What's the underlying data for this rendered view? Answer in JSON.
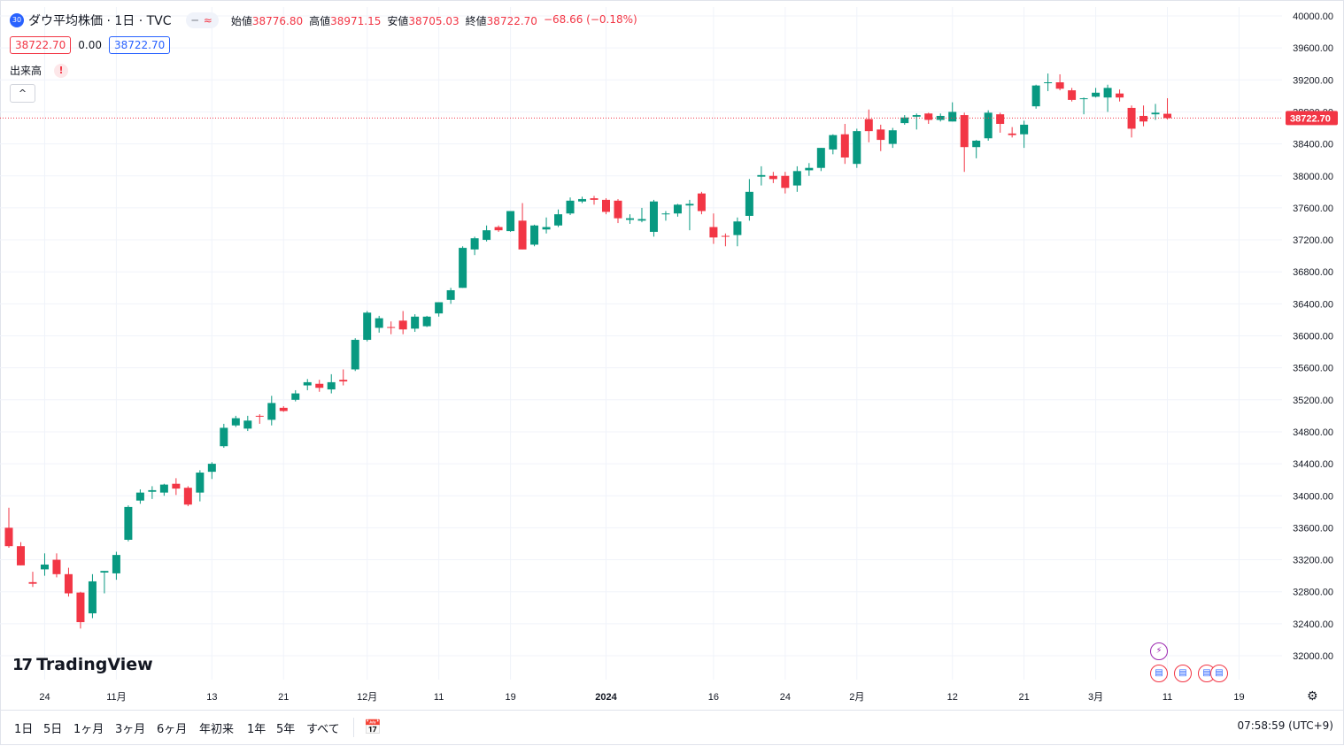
{
  "header": {
    "symbol_badge": "30",
    "title": "ダウ平均株価 · 1日 · TVC",
    "pill_left": "─",
    "pill_right": "≈",
    "ohlc": {
      "open_label": "始値",
      "open": "38776.80",
      "high_label": "高値",
      "high": "38971.15",
      "low_label": "安値",
      "low": "38705.03",
      "close_label": "終値",
      "close": "38722.70",
      "change": "−68.66 (−0.18%)"
    },
    "bid": "38722.70",
    "spread": "0.00",
    "ask": "38722.70",
    "volume_label": "出来高",
    "volume_warning": "!",
    "collapse_icon": "^"
  },
  "logo": {
    "mark": "17",
    "text": "TradingView"
  },
  "toolbar": {
    "ranges": [
      "1日",
      "5日",
      "1ヶ月",
      "3ヶ月",
      "6ヶ月",
      "年初来",
      "1年",
      "5年",
      "すべて"
    ],
    "calendar_icon": "calendar-goto-icon",
    "time": "07:58:59 (UTC+9)"
  },
  "colors": {
    "up": "#089981",
    "down": "#f23645",
    "grid": "#f0f3fa",
    "last_price": "#f23645"
  },
  "chart_data": {
    "type": "candlestick",
    "title": "ダウ平均株価 · 1日 · TVC",
    "xlabel": "",
    "ylabel": "",
    "ylim": [
      31700,
      40150
    ],
    "y_ticks": [
      32000,
      32400,
      32800,
      33200,
      33600,
      34000,
      34400,
      34800,
      35200,
      35600,
      36000,
      36400,
      36800,
      37200,
      37600,
      38000,
      38400,
      38800,
      39200,
      39600,
      40000
    ],
    "x_tick_labels": [
      "24",
      "11月",
      "13",
      "21",
      "12月",
      "11",
      "19",
      "2024",
      "16",
      "24",
      "2月",
      "12",
      "21",
      "3月",
      "11",
      "19"
    ],
    "x_tick_bar_index": [
      3,
      9,
      17,
      23,
      30,
      36,
      42,
      50,
      59,
      65,
      71,
      79,
      85,
      91,
      97,
      103
    ],
    "bold_tick": "2024",
    "last_price": 38722.7,
    "last_price_label": "38722.70",
    "candles": [
      [
        33600,
        33850,
        33350,
        33370
      ],
      [
        33370,
        33420,
        33130,
        33130
      ],
      [
        32920,
        33050,
        32860,
        32900
      ],
      [
        33080,
        33280,
        33000,
        33140
      ],
      [
        33200,
        33280,
        32980,
        33020
      ],
      [
        33020,
        33100,
        32740,
        32780
      ],
      [
        32790,
        32800,
        32340,
        32420
      ],
      [
        32530,
        33020,
        32470,
        32930
      ],
      [
        33040,
        33060,
        32780,
        33060
      ],
      [
        33030,
        33300,
        32950,
        33260
      ],
      [
        33450,
        33880,
        33430,
        33860
      ],
      [
        33940,
        34080,
        33900,
        34040
      ],
      [
        34050,
        34120,
        33960,
        34070
      ],
      [
        34040,
        34150,
        34000,
        34140
      ],
      [
        34150,
        34220,
        34010,
        34090
      ],
      [
        34100,
        34120,
        33870,
        33890
      ],
      [
        34040,
        34320,
        33930,
        34290
      ],
      [
        34300,
        34420,
        34210,
        34400
      ],
      [
        34620,
        34900,
        34600,
        34850
      ],
      [
        34880,
        35000,
        34860,
        34970
      ],
      [
        34840,
        35000,
        34810,
        34940
      ],
      [
        35000,
        35020,
        34900,
        34990
      ],
      [
        34950,
        35250,
        34880,
        35160
      ],
      [
        35100,
        35120,
        35050,
        35060
      ],
      [
        35200,
        35320,
        35180,
        35280
      ],
      [
        35380,
        35460,
        35320,
        35420
      ],
      [
        35400,
        35450,
        35300,
        35350
      ],
      [
        35330,
        35520,
        35280,
        35420
      ],
      [
        35450,
        35580,
        35380,
        35430
      ],
      [
        35580,
        35970,
        35560,
        35950
      ],
      [
        35950,
        36310,
        35930,
        36290
      ],
      [
        36100,
        36250,
        36040,
        36220
      ],
      [
        36110,
        36180,
        36020,
        36100
      ],
      [
        36190,
        36310,
        36020,
        36080
      ],
      [
        36090,
        36270,
        36050,
        36240
      ],
      [
        36120,
        36250,
        36110,
        36240
      ],
      [
        36280,
        36420,
        36240,
        36420
      ],
      [
        36450,
        36600,
        36400,
        36570
      ],
      [
        36600,
        37120,
        36600,
        37100
      ],
      [
        37080,
        37240,
        37010,
        37220
      ],
      [
        37200,
        37380,
        37180,
        37320
      ],
      [
        37360,
        37380,
        37300,
        37320
      ],
      [
        37310,
        37560,
        37300,
        37560
      ],
      [
        37440,
        37660,
        37080,
        37080
      ],
      [
        37140,
        37390,
        37120,
        37380
      ],
      [
        37330,
        37480,
        37280,
        37360
      ],
      [
        37380,
        37580,
        37360,
        37520
      ],
      [
        37530,
        37730,
        37510,
        37690
      ],
      [
        37680,
        37740,
        37660,
        37710
      ],
      [
        37720,
        37750,
        37640,
        37700
      ],
      [
        37700,
        37720,
        37520,
        37550
      ],
      [
        37690,
        37710,
        37410,
        37470
      ],
      [
        37450,
        37520,
        37400,
        37470
      ],
      [
        37440,
        37600,
        37420,
        37460
      ],
      [
        37300,
        37700,
        37240,
        37680
      ],
      [
        37520,
        37560,
        37440,
        37530
      ],
      [
        37530,
        37650,
        37490,
        37640
      ],
      [
        37630,
        37700,
        37320,
        37650
      ],
      [
        37780,
        37800,
        37520,
        37560
      ],
      [
        37360,
        37530,
        37150,
        37230
      ],
      [
        37250,
        37280,
        37120,
        37240
      ],
      [
        37260,
        37480,
        37120,
        37430
      ],
      [
        37500,
        37960,
        37440,
        37800
      ],
      [
        37990,
        38120,
        37880,
        38010
      ],
      [
        38000,
        38050,
        37910,
        37960
      ],
      [
        38000,
        38050,
        37780,
        37850
      ],
      [
        37880,
        38120,
        37800,
        38060
      ],
      [
        38070,
        38160,
        38000,
        38100
      ],
      [
        38100,
        38350,
        38060,
        38350
      ],
      [
        38330,
        38520,
        38270,
        38510
      ],
      [
        38520,
        38650,
        38150,
        38230
      ],
      [
        38150,
        38590,
        38100,
        38560
      ],
      [
        38710,
        38830,
        38420,
        38560
      ],
      [
        38580,
        38640,
        38310,
        38450
      ],
      [
        38400,
        38600,
        38350,
        38570
      ],
      [
        38660,
        38760,
        38640,
        38730
      ],
      [
        38740,
        38780,
        38580,
        38760
      ],
      [
        38780,
        38790,
        38650,
        38700
      ],
      [
        38700,
        38780,
        38680,
        38750
      ],
      [
        38680,
        38920,
        38680,
        38800
      ],
      [
        38760,
        38790,
        38050,
        38360
      ],
      [
        38360,
        38450,
        38220,
        38440
      ],
      [
        38470,
        38820,
        38440,
        38790
      ],
      [
        38770,
        38790,
        38540,
        38650
      ],
      [
        38530,
        38610,
        38480,
        38510
      ],
      [
        38520,
        38690,
        38350,
        38640
      ],
      [
        38870,
        39140,
        38840,
        39130
      ],
      [
        39160,
        39280,
        39060,
        39170
      ],
      [
        39170,
        39270,
        39070,
        39090
      ],
      [
        39070,
        39100,
        38930,
        38950
      ],
      [
        38970,
        38980,
        38770,
        38970
      ],
      [
        38990,
        39100,
        38980,
        39040
      ],
      [
        38980,
        39140,
        38800,
        39100
      ],
      [
        39030,
        39080,
        38930,
        38980
      ],
      [
        38850,
        38880,
        38480,
        38590
      ],
      [
        38750,
        38880,
        38620,
        38680
      ],
      [
        38770,
        38900,
        38700,
        38790
      ],
      [
        38776.8,
        38971.15,
        38705.03,
        38722.7
      ]
    ]
  }
}
